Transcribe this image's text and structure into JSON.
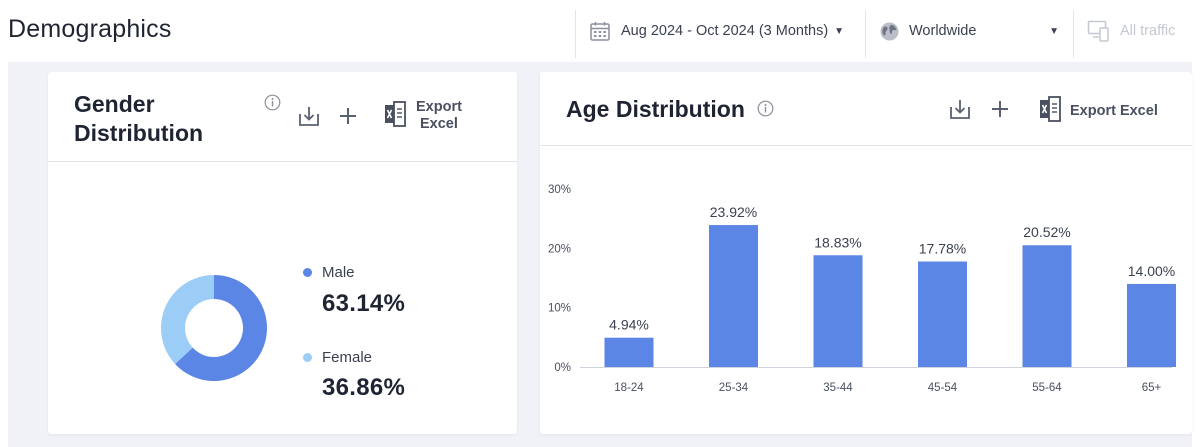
{
  "header": {
    "title": "Demographics",
    "date_range": "Aug 2024 - Oct 2024 (3 Months)",
    "region": "Worldwide",
    "traffic": "All traffic"
  },
  "gender": {
    "title_line1": "Gender",
    "title_line2": "Distribution",
    "export_line1": "Export",
    "export_line2": "Excel",
    "male_label": "Male",
    "male_value": "63.14%",
    "female_label": "Female",
    "female_value": "36.86%",
    "male_color": "#5b86e5",
    "female_color": "#9ccdf7"
  },
  "age": {
    "title": "Age Distribution",
    "export_label": "Export Excel",
    "bar_color": "#5b86e5"
  },
  "chart_data": [
    {
      "type": "pie",
      "categories": [
        "Male",
        "Female"
      ],
      "values": [
        63.14,
        36.86
      ],
      "title": "Gender Distribution",
      "colors": [
        "#5b86e5",
        "#9ccdf7"
      ],
      "legend": "right"
    },
    {
      "type": "bar",
      "title": "Age Distribution",
      "categories": [
        "18-24",
        "25-34",
        "35-44",
        "45-54",
        "55-64",
        "65+"
      ],
      "values": [
        4.94,
        23.92,
        18.83,
        17.78,
        20.52,
        14.0
      ],
      "data_labels": [
        "4.94%",
        "23.92%",
        "18.83%",
        "17.78%",
        "20.52%",
        "14.00%"
      ],
      "yticks": [
        "0%",
        "10%",
        "20%",
        "30%"
      ],
      "ylim": [
        0,
        30
      ],
      "grid": false,
      "xlabel": "",
      "ylabel": ""
    }
  ]
}
